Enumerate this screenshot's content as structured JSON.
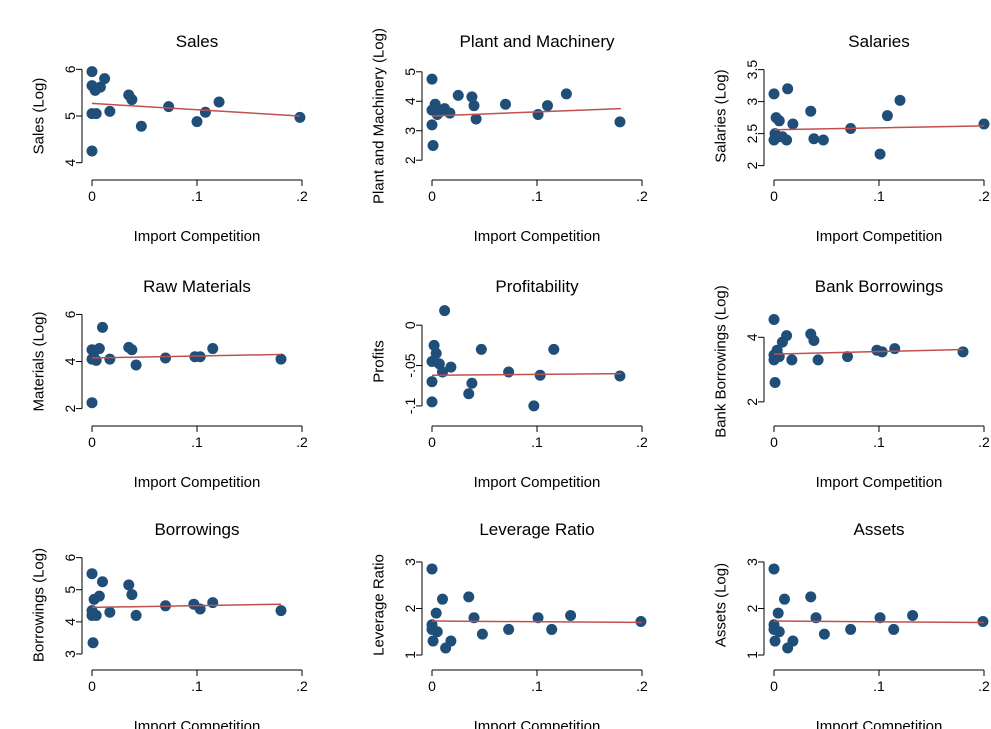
{
  "colors": {
    "point": "#1f4e79",
    "fit_line": "#c0504d",
    "axis": "#000000",
    "background": "#ffffff"
  },
  "chart_data": [
    {
      "type": "scatter",
      "title": "Sales",
      "xlabel": "Import Competition",
      "ylabel": "Sales (Log)",
      "xlim": [
        0,
        0.2
      ],
      "ylim": [
        3.8,
        6.2
      ],
      "xticks": [
        0,
        0.1,
        0.2
      ],
      "xtick_labels": [
        "0",
        ".1",
        ".2"
      ],
      "yticks": [
        4,
        5,
        6
      ],
      "ytick_labels": [
        "4",
        "5",
        "6"
      ],
      "points": [
        [
          0,
          5.95
        ],
        [
          0,
          5.65
        ],
        [
          0,
          5.05
        ],
        [
          0,
          4.25
        ],
        [
          0.003,
          5.55
        ],
        [
          0.004,
          5.05
        ],
        [
          0.008,
          5.62
        ],
        [
          0.012,
          5.8
        ],
        [
          0.017,
          5.1
        ],
        [
          0.035,
          5.45
        ],
        [
          0.038,
          5.35
        ],
        [
          0.047,
          4.78
        ],
        [
          0.073,
          5.2
        ],
        [
          0.1,
          4.88
        ],
        [
          0.108,
          5.08
        ],
        [
          0.121,
          5.3
        ],
        [
          0.198,
          4.97
        ]
      ],
      "fit_line": [
        [
          0,
          5.27
        ],
        [
          0.198,
          5.0
        ]
      ]
    },
    {
      "type": "scatter",
      "title": "Plant and Machinery",
      "xlabel": "Import Competition",
      "ylabel": "Plant and Machinery (Log)",
      "xlim": [
        0,
        0.2
      ],
      "ylim": [
        1.6,
        5.4
      ],
      "xticks": [
        0,
        0.1,
        0.2
      ],
      "xtick_labels": [
        "0",
        ".1",
        ".2"
      ],
      "yticks": [
        2,
        3,
        4,
        5
      ],
      "ytick_labels": [
        "2",
        "3",
        "4",
        "5"
      ],
      "points": [
        [
          0,
          4.75
        ],
        [
          0,
          3.7
        ],
        [
          0,
          3.2
        ],
        [
          0.001,
          2.5
        ],
        [
          0.003,
          3.9
        ],
        [
          0.005,
          3.55
        ],
        [
          0.008,
          3.65
        ],
        [
          0.012,
          3.75
        ],
        [
          0.017,
          3.6
        ],
        [
          0.025,
          4.2
        ],
        [
          0.038,
          4.15
        ],
        [
          0.04,
          3.85
        ],
        [
          0.042,
          3.4
        ],
        [
          0.07,
          3.9
        ],
        [
          0.101,
          3.55
        ],
        [
          0.11,
          3.85
        ],
        [
          0.128,
          4.25
        ],
        [
          0.179,
          3.3
        ]
      ],
      "fit_line": [
        [
          0,
          3.5
        ],
        [
          0.18,
          3.75
        ]
      ]
    },
    {
      "type": "scatter",
      "title": "Salaries",
      "xlabel": "Import Competition",
      "ylabel": "Salaries (Log)",
      "xlim": [
        0,
        0.2
      ],
      "ylim": [
        1.9,
        3.65
      ],
      "xticks": [
        0,
        0.1,
        0.2
      ],
      "xtick_labels": [
        "0",
        ".1",
        ".2"
      ],
      "yticks": [
        2,
        2.5,
        3,
        3.5
      ],
      "ytick_labels": [
        "2",
        "2.5",
        "3",
        "3.5"
      ],
      "points": [
        [
          0,
          3.12
        ],
        [
          0,
          2.4
        ],
        [
          0.001,
          2.5
        ],
        [
          0.002,
          2.75
        ],
        [
          0.004,
          2.45
        ],
        [
          0.005,
          2.7
        ],
        [
          0.008,
          2.45
        ],
        [
          0.012,
          2.4
        ],
        [
          0.013,
          3.2
        ],
        [
          0.018,
          2.65
        ],
        [
          0.035,
          2.85
        ],
        [
          0.038,
          2.42
        ],
        [
          0.047,
          2.4
        ],
        [
          0.073,
          2.58
        ],
        [
          0.101,
          2.18
        ],
        [
          0.108,
          2.78
        ],
        [
          0.12,
          3.02
        ],
        [
          0.2,
          2.65
        ]
      ],
      "fit_line": [
        [
          0,
          2.56
        ],
        [
          0.2,
          2.62
        ]
      ]
    },
    {
      "type": "scatter",
      "title": "Raw Materials",
      "xlabel": "Import Competition",
      "ylabel": "Materials (Log)",
      "xlim": [
        0,
        0.2
      ],
      "ylim": [
        1.6,
        6.4
      ],
      "xticks": [
        0,
        0.1,
        0.2
      ],
      "xtick_labels": [
        "0",
        ".1",
        ".2"
      ],
      "yticks": [
        2,
        4,
        6
      ],
      "ytick_labels": [
        "2",
        "4",
        "6"
      ],
      "points": [
        [
          0,
          4.5
        ],
        [
          0,
          4.1
        ],
        [
          0,
          2.25
        ],
        [
          0.002,
          4.4
        ],
        [
          0.004,
          4.05
        ],
        [
          0.007,
          4.55
        ],
        [
          0.01,
          5.45
        ],
        [
          0.017,
          4.1
        ],
        [
          0.035,
          4.6
        ],
        [
          0.038,
          4.5
        ],
        [
          0.042,
          3.85
        ],
        [
          0.07,
          4.15
        ],
        [
          0.098,
          4.2
        ],
        [
          0.103,
          4.2
        ],
        [
          0.115,
          4.55
        ],
        [
          0.18,
          4.1
        ]
      ],
      "fit_line": [
        [
          0,
          4.15
        ],
        [
          0.18,
          4.3
        ]
      ]
    },
    {
      "type": "scatter",
      "title": "Profitability",
      "xlabel": "Import Competition",
      "ylabel": "Profits",
      "xlim": [
        0,
        0.2
      ],
      "ylim": [
        -0.115,
        0.025
      ],
      "xticks": [
        0,
        0.1,
        0.2
      ],
      "xtick_labels": [
        "0",
        ".1",
        ".2"
      ],
      "yticks": [
        -0.1,
        -0.05,
        0
      ],
      "ytick_labels": [
        "-.1",
        "-.05",
        "0"
      ],
      "points": [
        [
          0,
          -0.045
        ],
        [
          0,
          -0.07
        ],
        [
          0,
          -0.095
        ],
        [
          0.002,
          -0.025
        ],
        [
          0.004,
          -0.035
        ],
        [
          0.007,
          -0.048
        ],
        [
          0.01,
          -0.058
        ],
        [
          0.012,
          0.018
        ],
        [
          0.018,
          -0.052
        ],
        [
          0.035,
          -0.085
        ],
        [
          0.038,
          -0.072
        ],
        [
          0.047,
          -0.03
        ],
        [
          0.073,
          -0.058
        ],
        [
          0.097,
          -0.1
        ],
        [
          0.103,
          -0.062
        ],
        [
          0.116,
          -0.03
        ],
        [
          0.179,
          -0.063
        ]
      ],
      "fit_line": [
        [
          0,
          -0.062
        ],
        [
          0.18,
          -0.06
        ]
      ]
    },
    {
      "type": "scatter",
      "title": "Bank Borrowings",
      "xlabel": "Import Competition",
      "ylabel": "Bank Borrowings (Log)",
      "xlim": [
        0,
        0.2
      ],
      "ylim": [
        1.5,
        5.0
      ],
      "xticks": [
        0,
        0.1,
        0.2
      ],
      "xtick_labels": [
        "0",
        ".1",
        ".2"
      ],
      "yticks": [
        2,
        4
      ],
      "ytick_labels": [
        "2",
        "4"
      ],
      "points": [
        [
          0,
          4.55
        ],
        [
          0,
          3.45
        ],
        [
          0,
          3.3
        ],
        [
          0.001,
          2.6
        ],
        [
          0.003,
          3.6
        ],
        [
          0.005,
          3.4
        ],
        [
          0.008,
          3.85
        ],
        [
          0.012,
          4.05
        ],
        [
          0.017,
          3.3
        ],
        [
          0.035,
          4.1
        ],
        [
          0.038,
          3.9
        ],
        [
          0.042,
          3.3
        ],
        [
          0.07,
          3.4
        ],
        [
          0.098,
          3.6
        ],
        [
          0.103,
          3.55
        ],
        [
          0.115,
          3.65
        ],
        [
          0.18,
          3.55
        ]
      ],
      "fit_line": [
        [
          0,
          3.48
        ],
        [
          0.18,
          3.62
        ]
      ]
    },
    {
      "type": "scatter",
      "title": "Borrowings",
      "xlabel": "Import Competition",
      "ylabel": "Borrowings (Log)",
      "xlim": [
        0,
        0.2
      ],
      "ylim": [
        2.75,
        6.3
      ],
      "xticks": [
        0,
        0.1,
        0.2
      ],
      "xtick_labels": [
        "0",
        ".1",
        ".2"
      ],
      "yticks": [
        3,
        4,
        5,
        6
      ],
      "ytick_labels": [
        "3",
        "4",
        "5",
        "6"
      ],
      "points": [
        [
          0,
          5.5
        ],
        [
          0,
          4.35
        ],
        [
          0,
          4.2
        ],
        [
          0.001,
          3.35
        ],
        [
          0.002,
          4.7
        ],
        [
          0.004,
          4.2
        ],
        [
          0.007,
          4.8
        ],
        [
          0.01,
          5.25
        ],
        [
          0.017,
          4.3
        ],
        [
          0.035,
          5.15
        ],
        [
          0.038,
          4.85
        ],
        [
          0.042,
          4.2
        ],
        [
          0.07,
          4.5
        ],
        [
          0.097,
          4.55
        ],
        [
          0.103,
          4.4
        ],
        [
          0.115,
          4.6
        ],
        [
          0.18,
          4.35
        ]
      ],
      "fit_line": [
        [
          0,
          4.45
        ],
        [
          0.18,
          4.55
        ]
      ]
    },
    {
      "type": "scatter",
      "title": "Leverage Ratio",
      "xlabel": "Import Competition",
      "ylabel": "Leverage Ratio",
      "xlim": [
        0,
        0.2
      ],
      "ylim": [
        0.85,
        3.3
      ],
      "xticks": [
        0,
        0.1,
        0.2
      ],
      "xtick_labels": [
        "0",
        ".1",
        ".2"
      ],
      "yticks": [
        1,
        2,
        3
      ],
      "ytick_labels": [
        "1",
        "2",
        "3"
      ],
      "points": [
        [
          0,
          2.85
        ],
        [
          0,
          1.65
        ],
        [
          0,
          1.55
        ],
        [
          0.001,
          1.3
        ],
        [
          0.004,
          1.9
        ],
        [
          0.005,
          1.5
        ],
        [
          0.01,
          2.2
        ],
        [
          0.013,
          1.15
        ],
        [
          0.018,
          1.3
        ],
        [
          0.035,
          2.25
        ],
        [
          0.04,
          1.8
        ],
        [
          0.048,
          1.45
        ],
        [
          0.073,
          1.55
        ],
        [
          0.101,
          1.8
        ],
        [
          0.114,
          1.55
        ],
        [
          0.132,
          1.85
        ],
        [
          0.199,
          1.72
        ]
      ],
      "fit_line": [
        [
          0,
          1.73
        ],
        [
          0.2,
          1.7
        ]
      ]
    },
    {
      "type": "scatter",
      "title": "Assets",
      "xlabel": "Import Competition",
      "ylabel": "Assets (Log)",
      "xlim": [
        0,
        0.2
      ],
      "ylim": [
        0.85,
        3.3
      ],
      "xticks": [
        0,
        0.1,
        0.2
      ],
      "xtick_labels": [
        "0",
        ".1",
        ".2"
      ],
      "yticks": [
        1,
        2,
        3
      ],
      "ytick_labels": [
        "1",
        "2",
        "3"
      ],
      "points": [
        [
          0,
          2.85
        ],
        [
          0,
          1.65
        ],
        [
          0,
          1.55
        ],
        [
          0.001,
          1.3
        ],
        [
          0.004,
          1.9
        ],
        [
          0.005,
          1.5
        ],
        [
          0.01,
          2.2
        ],
        [
          0.013,
          1.15
        ],
        [
          0.018,
          1.3
        ],
        [
          0.035,
          2.25
        ],
        [
          0.04,
          1.8
        ],
        [
          0.048,
          1.45
        ],
        [
          0.073,
          1.55
        ],
        [
          0.101,
          1.8
        ],
        [
          0.114,
          1.55
        ],
        [
          0.132,
          1.85
        ],
        [
          0.199,
          1.72
        ]
      ],
      "fit_line": [
        [
          0,
          1.73
        ],
        [
          0.2,
          1.7
        ]
      ]
    }
  ]
}
